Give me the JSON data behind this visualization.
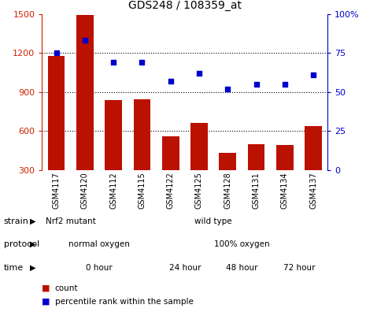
{
  "title": "GDS248 / 108359_at",
  "samples": [
    "GSM4117",
    "GSM4120",
    "GSM4112",
    "GSM4115",
    "GSM4122",
    "GSM4125",
    "GSM4128",
    "GSM4131",
    "GSM4134",
    "GSM4137"
  ],
  "counts": [
    1175,
    1490,
    840,
    845,
    560,
    660,
    430,
    500,
    495,
    640
  ],
  "percentiles": [
    75,
    83,
    69,
    69,
    57,
    62,
    52,
    55,
    55,
    61
  ],
  "ylim_left": [
    300,
    1500
  ],
  "ylim_right": [
    0,
    100
  ],
  "yticks_left": [
    300,
    600,
    900,
    1200,
    1500
  ],
  "yticks_right": [
    0,
    25,
    50,
    75,
    100
  ],
  "yticklabels_right": [
    "0",
    "25",
    "50",
    "75",
    "100%"
  ],
  "bar_color": "#bb1100",
  "dot_color": "#0000cc",
  "grid_color": "#000000",
  "strain_segments": [
    {
      "label": "Nrf2 mutant",
      "start": 0,
      "end": 2,
      "color": "#88dd88"
    },
    {
      "label": "wild type",
      "start": 2,
      "end": 10,
      "color": "#44bb44"
    }
  ],
  "protocol_segments": [
    {
      "label": "normal oxygen",
      "start": 0,
      "end": 4,
      "color": "#aaaaee"
    },
    {
      "label": "100% oxygen",
      "start": 4,
      "end": 10,
      "color": "#7777cc"
    }
  ],
  "time_segments": [
    {
      "label": "0 hour",
      "start": 0,
      "end": 4,
      "color": "#ffdddd"
    },
    {
      "label": "24 hour",
      "start": 4,
      "end": 6,
      "color": "#ffbbbb"
    },
    {
      "label": "48 hour",
      "start": 6,
      "end": 8,
      "color": "#ee9999"
    },
    {
      "label": "72 hour",
      "start": 8,
      "end": 10,
      "color": "#cc7777"
    }
  ],
  "row_labels": [
    "strain",
    "protocol",
    "time"
  ],
  "legend_count_label": "count",
  "legend_pct_label": "percentile rank within the sample",
  "axis_color_left": "#cc2200",
  "axis_color_right": "#0000cc",
  "xtick_bg": "#cccccc",
  "n_samples": 10
}
